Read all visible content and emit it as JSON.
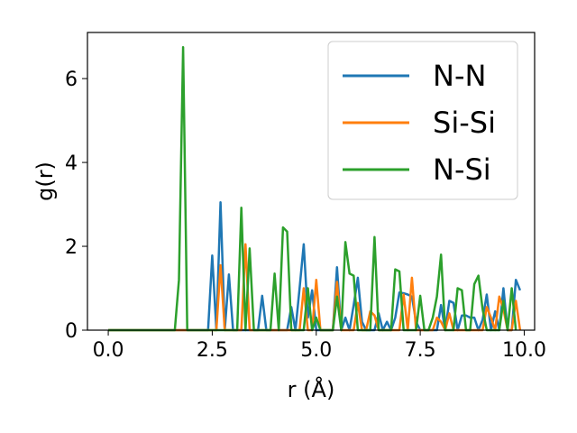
{
  "chart_data": {
    "type": "line",
    "xlabel": "r (Å)",
    "ylabel": "g(r)",
    "xlim": [
      -0.5,
      10.25
    ],
    "ylim": [
      0,
      7.1
    ],
    "xticks": [
      0.0,
      2.5,
      5.0,
      7.5,
      10.0
    ],
    "xtick_labels": [
      "0.0",
      "2.5",
      "5.0",
      "7.5",
      "10.0"
    ],
    "yticks": [
      0,
      2,
      4,
      6
    ],
    "ytick_labels": [
      "0",
      "2",
      "4",
      "6"
    ],
    "grid": false,
    "legend_position": "top-right",
    "series": [
      {
        "name": "N-N",
        "color": "#1f77b4",
        "x": [
          0.0,
          1.0,
          2.0,
          2.4,
          2.5,
          2.6,
          2.7,
          2.8,
          2.9,
          3.0,
          3.1,
          3.2,
          3.3,
          3.4,
          3.5,
          3.6,
          3.7,
          3.8,
          3.9,
          4.0,
          4.1,
          4.2,
          4.3,
          4.4,
          4.5,
          4.6,
          4.7,
          4.8,
          4.9,
          5.0,
          5.1,
          5.2,
          5.3,
          5.4,
          5.5,
          5.6,
          5.7,
          5.8,
          5.9,
          6.0,
          6.1,
          6.2,
          6.3,
          6.4,
          6.5,
          6.6,
          6.7,
          6.8,
          6.9,
          7.0,
          7.1,
          7.2,
          7.3,
          7.4,
          7.5,
          7.6,
          7.7,
          7.8,
          7.9,
          8.0,
          8.1,
          8.2,
          8.3,
          8.4,
          8.5,
          8.6,
          8.7,
          8.8,
          8.9,
          9.0,
          9.1,
          9.2,
          9.3,
          9.4,
          9.5,
          9.6,
          9.7,
          9.8,
          9.9
        ],
        "y": [
          0,
          0,
          0,
          0,
          1.78,
          0,
          3.05,
          0,
          1.33,
          0,
          0,
          0,
          0,
          0,
          0,
          0,
          0.82,
          0,
          0,
          0,
          0,
          0,
          0,
          0.55,
          0,
          1.0,
          2.05,
          0.3,
          0.95,
          0,
          0,
          0,
          0,
          0,
          1.5,
          0,
          0.3,
          0,
          0.6,
          1.25,
          0.2,
          0,
          0,
          0,
          0.4,
          0,
          0.2,
          0,
          0.3,
          0.9,
          0.88,
          0.85,
          0.8,
          0.2,
          0,
          0,
          0,
          0,
          0,
          0.6,
          0,
          0.7,
          0.65,
          0,
          0.35,
          0.35,
          0.3,
          0.3,
          0,
          0.25,
          0.85,
          0,
          0.45,
          0,
          1.0,
          0,
          0,
          1.2,
          0.95
        ]
      },
      {
        "name": "Si-Si",
        "color": "#ff7f0e",
        "x": [
          0.0,
          1.0,
          2.0,
          2.6,
          2.7,
          2.8,
          2.9,
          3.1,
          3.2,
          3.3,
          3.4,
          4.5,
          4.6,
          4.7,
          4.8,
          4.9,
          5.0,
          5.1,
          5.2,
          5.3,
          5.4,
          5.5,
          5.6,
          5.7,
          5.8,
          5.9,
          6.0,
          6.1,
          6.2,
          6.3,
          6.4,
          6.5,
          6.6,
          6.7,
          6.8,
          6.9,
          7.0,
          7.1,
          7.2,
          7.3,
          7.4,
          7.5,
          7.6,
          7.7,
          7.8,
          7.9,
          8.0,
          8.1,
          8.2,
          8.3,
          8.4,
          8.5,
          8.6,
          8.7,
          8.8,
          8.9,
          9.0,
          9.1,
          9.2,
          9.3,
          9.4,
          9.5,
          9.6,
          9.7,
          9.8,
          9.9
        ],
        "y": [
          0,
          0,
          0,
          0,
          1.55,
          0,
          0,
          0,
          0,
          2.05,
          0,
          0,
          0,
          1.0,
          0,
          0,
          1.2,
          0,
          0,
          0,
          0,
          1.15,
          0,
          0,
          0,
          0,
          0.65,
          0,
          0,
          0.45,
          0.35,
          0,
          0,
          0,
          0,
          0,
          0,
          0.85,
          0,
          1.25,
          0,
          0,
          0,
          0,
          0,
          0.3,
          0.2,
          0,
          0.4,
          0,
          0,
          0,
          0,
          0,
          0,
          0,
          0,
          0.55,
          0.3,
          0,
          0.8,
          0.5,
          0,
          0,
          0.7,
          0
        ]
      },
      {
        "name": "N-Si",
        "color": "#2ca02c",
        "x": [
          0.0,
          1.0,
          1.6,
          1.7,
          1.8,
          1.9,
          2.0,
          3.1,
          3.2,
          3.3,
          3.4,
          3.5,
          3.6,
          3.7,
          3.8,
          3.9,
          4.0,
          4.1,
          4.2,
          4.3,
          4.4,
          4.5,
          4.6,
          4.7,
          4.8,
          4.9,
          5.0,
          5.1,
          5.2,
          5.3,
          5.4,
          5.5,
          5.6,
          5.7,
          5.8,
          5.9,
          6.0,
          6.1,
          6.2,
          6.3,
          6.4,
          6.5,
          6.6,
          6.7,
          6.8,
          6.9,
          7.0,
          7.1,
          7.2,
          7.3,
          7.4,
          7.5,
          7.6,
          7.7,
          7.8,
          7.9,
          8.0,
          8.1,
          8.2,
          8.3,
          8.4,
          8.5,
          8.6,
          8.7,
          8.8,
          8.9,
          9.0,
          9.1,
          9.2,
          9.3,
          9.4,
          9.5,
          9.6,
          9.7,
          9.8
        ],
        "y": [
          0,
          0,
          0,
          1.2,
          6.75,
          0,
          0,
          0,
          2.92,
          0,
          1.95,
          0,
          0,
          0,
          0,
          0,
          1.35,
          0,
          2.45,
          2.35,
          0,
          0,
          0,
          0,
          1.0,
          0,
          0.3,
          0,
          0,
          0,
          0,
          0.8,
          0,
          2.1,
          1.35,
          1.3,
          0,
          0,
          0,
          0,
          2.22,
          0,
          0,
          0,
          0,
          1.45,
          1.4,
          0,
          0,
          0,
          0,
          0.82,
          0,
          0,
          0.3,
          0.8,
          1.8,
          0,
          0,
          0,
          1.0,
          0.95,
          0,
          0,
          1.1,
          1.3,
          0.5,
          0,
          0,
          0,
          0,
          0.7,
          0,
          1.0,
          0
        ]
      }
    ]
  }
}
